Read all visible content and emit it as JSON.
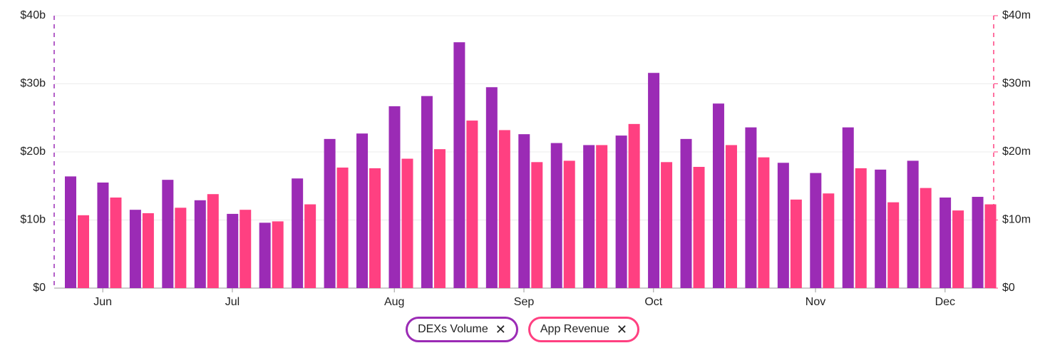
{
  "chart_data": {
    "type": "bar",
    "categories": [
      null,
      "Jun",
      null,
      null,
      null,
      "Jul",
      null,
      null,
      null,
      null,
      "Aug",
      null,
      null,
      null,
      "Sep",
      null,
      null,
      null,
      "Oct",
      null,
      null,
      null,
      null,
      "Nov",
      null,
      null,
      null,
      "Dec",
      null
    ],
    "series": [
      {
        "name": "DEXs Volume",
        "color": "#9b2bb5",
        "axis": "y",
        "values": [
          16.4,
          15.5,
          11.5,
          15.9,
          12.9,
          10.9,
          9.6,
          16.1,
          21.9,
          22.7,
          26.7,
          28.2,
          36.1,
          29.5,
          22.6,
          21.3,
          21.0,
          22.4,
          31.6,
          21.9,
          27.1,
          23.6,
          18.4,
          16.9,
          23.6,
          17.4,
          18.7,
          13.3,
          13.4
        ]
      },
      {
        "name": "App Revenue",
        "color": "#ff4081",
        "axis": "y2",
        "values": [
          10.7,
          13.3,
          11.0,
          11.8,
          13.8,
          11.5,
          9.8,
          12.3,
          17.7,
          17.6,
          19.0,
          20.4,
          24.6,
          23.2,
          18.5,
          18.7,
          21.0,
          24.1,
          18.5,
          17.8,
          21.0,
          19.2,
          13.0,
          13.9,
          17.6,
          12.6,
          14.7,
          11.4,
          12.3
        ]
      }
    ],
    "ylim": [
      0,
      40
    ],
    "yticks": [
      {
        "value": 0,
        "label": "$0"
      },
      {
        "value": 10,
        "label": "$10b"
      },
      {
        "value": 20,
        "label": "$20b"
      },
      {
        "value": 30,
        "label": "$30b"
      },
      {
        "value": 40,
        "label": "$40b"
      }
    ],
    "y2lim": [
      0,
      40
    ],
    "y2ticks": [
      {
        "value": 0,
        "label": "$0"
      },
      {
        "value": 10,
        "label": "$10m"
      },
      {
        "value": 20,
        "label": "$20m"
      },
      {
        "value": 30,
        "label": "$30m"
      },
      {
        "value": 40,
        "label": "$40m"
      }
    ],
    "grid": true
  }
}
